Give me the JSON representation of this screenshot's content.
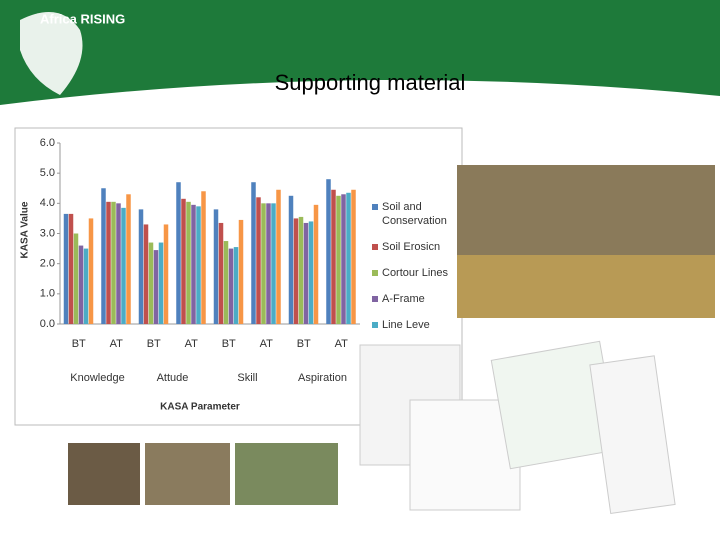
{
  "slide": {
    "title": "Supporting material",
    "logo": "Africa RISING"
  },
  "chart_data": {
    "type": "bar",
    "categories": [
      "BT",
      "AT",
      "BT",
      "AT",
      "BT",
      "AT",
      "BT",
      "AT"
    ],
    "groups": [
      "Knowledge",
      "Attude",
      "Skill",
      "Aspiration"
    ],
    "y_label": "KASA Value",
    "x_label": "KASA Parameter",
    "ylim": [
      0,
      6
    ],
    "yticks": [
      {
        "value": 0,
        "label": "0.0"
      },
      {
        "value": 1,
        "label": "1.0"
      },
      {
        "value": 2,
        "label": "2.0"
      },
      {
        "value": 3,
        "label": "3.0"
      },
      {
        "value": 4,
        "label": "4.0"
      },
      {
        "value": 5,
        "label": "5.0"
      },
      {
        "value": 6,
        "label": "6.0"
      }
    ],
    "grid": false,
    "series": [
      {
        "name": "Soil and Conservation",
        "color": "#4f81bd",
        "values": [
          3.65,
          4.5,
          3.8,
          4.7,
          3.8,
          4.7,
          4.25,
          4.8
        ]
      },
      {
        "name": "Soil Erosicn",
        "color": "#c0504d",
        "values": [
          3.65,
          4.05,
          3.3,
          4.15,
          3.35,
          4.2,
          3.5,
          4.45
        ]
      },
      {
        "name": "Cortour Lines",
        "color": "#9bbb59",
        "values": [
          3.0,
          4.05,
          2.7,
          4.05,
          2.75,
          4.0,
          3.55,
          4.25
        ]
      },
      {
        "name": "A-Frame",
        "color": "#8064a2",
        "values": [
          2.6,
          4.0,
          2.45,
          3.95,
          2.5,
          4.0,
          3.35,
          4.3
        ]
      },
      {
        "name": "Line Leve",
        "color": "#4bacc6",
        "values": [
          2.5,
          3.85,
          2.7,
          3.9,
          2.55,
          4.0,
          3.4,
          4.35
        ]
      },
      {
        "color": "#f79646",
        "values": [
          3.5,
          4.3,
          3.3,
          4.4,
          3.45,
          4.45,
          3.95,
          4.45
        ]
      }
    ]
  }
}
